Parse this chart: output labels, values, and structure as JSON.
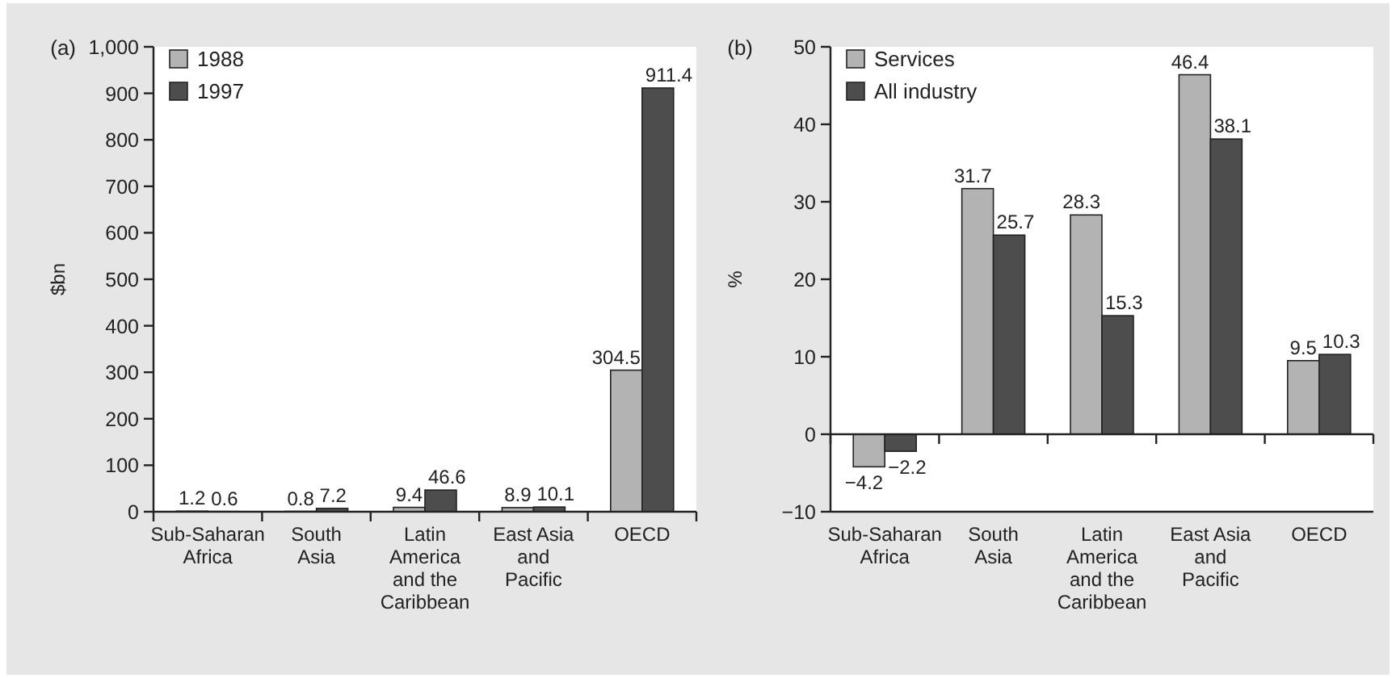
{
  "chart_data": [
    {
      "type": "bar",
      "title": "(a)",
      "ylabel": "$bn",
      "categories": [
        "Sub-Saharan Africa",
        "South Asia",
        "Latin America and the Caribbean",
        "East Asia and Pacific",
        "OECD"
      ],
      "series": [
        {
          "name": "1988",
          "color": "#b3b3b3",
          "values": [
            1.2,
            0.8,
            9.4,
            8.9,
            304.5
          ],
          "value_labels": [
            "1.2",
            "0.8",
            "9.4",
            "8.9",
            "304.5"
          ]
        },
        {
          "name": "1997",
          "color": "#4d4d4d",
          "values": [
            0.6,
            7.2,
            46.6,
            10.1,
            911.4
          ],
          "value_labels": [
            "0.6",
            "7.2",
            "46.6",
            "10.1",
            "911.4"
          ]
        }
      ],
      "ylim": [
        0,
        1000
      ],
      "yticks": [
        0,
        100,
        200,
        300,
        400,
        500,
        600,
        700,
        800,
        900,
        {
          "value": 1000,
          "label": "1,000"
        }
      ],
      "legend": "top left"
    },
    {
      "type": "bar",
      "title": "(b)",
      "ylabel": "%",
      "categories": [
        "Sub-Saharan Africa",
        "South Asia",
        "Latin America and the Caribbean",
        "East Asia and Pacific",
        "OECD"
      ],
      "series": [
        {
          "name": "Services",
          "color": "#b3b3b3",
          "values": [
            -4.2,
            31.7,
            28.3,
            46.4,
            9.5
          ]
        },
        {
          "name": "All industry",
          "color": "#4d4d4d",
          "values": [
            -2.2,
            25.7,
            15.3,
            38.1,
            10.3
          ]
        }
      ],
      "ylim": [
        -10,
        50
      ],
      "yticks": [
        {
          "value": -10,
          "label": "−10"
        },
        0,
        10,
        20,
        30,
        40,
        50
      ],
      "data_labels": true,
      "legend": "top left"
    }
  ]
}
